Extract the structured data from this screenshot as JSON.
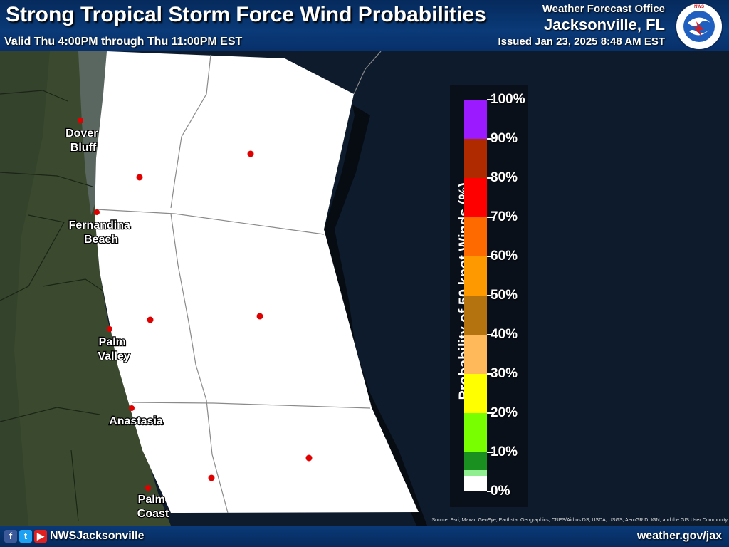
{
  "header": {
    "title": "Strong Tropical Storm Force Wind Probabilities",
    "valid": "Valid Thu 4:00PM through Thu 11:00PM EST",
    "office_label": "Weather Forecast Office",
    "office_name": "Jacksonville, FL",
    "issued": "Issued Jan 23, 2025 8:48 AM EST",
    "logo_text": "NATIONAL WEATHER SERVICE"
  },
  "map": {
    "cities": [
      {
        "name_lines": [
          "Dover",
          "Bluff"
        ]
      },
      {
        "name_lines": [
          "Fernandina",
          "Beach"
        ]
      },
      {
        "name_lines": [
          "Palm",
          "Valley"
        ]
      },
      {
        "name_lines": [
          "Anastasia"
        ]
      },
      {
        "name_lines": [
          "Palm",
          "Coast"
        ]
      }
    ],
    "zone_probability_color": "#ffffff",
    "land_color": "#3a4a2e",
    "ocean_color": "#0d1b2c"
  },
  "legend": {
    "title": "Probability of 50 knot Winds (%)",
    "labels": [
      "100%",
      "90%",
      "80%",
      "70%",
      "60%",
      "50%",
      "40%",
      "30%",
      "20%",
      "10%",
      "0%"
    ],
    "colors": [
      "#9b1aff",
      "#b02a00",
      "#ff0000",
      "#ff6a00",
      "#ff9900",
      "#b5730f",
      "#ffb85a",
      "#ffff00",
      "#78ff00",
      "#00c800",
      "#1a9020",
      "#90ee90",
      "#ffffff"
    ]
  },
  "footer": {
    "handle": "NWSJacksonville",
    "website": "weather.gov/jax",
    "source": "Source: Esri, Maxar, GeoEye, Earthstar Geographics, CNES/Airbus DS, USDA, USGS, AeroGRID, IGN, and the GIS User Community",
    "icons": [
      "facebook-icon",
      "twitter-icon",
      "youtube-icon"
    ]
  }
}
